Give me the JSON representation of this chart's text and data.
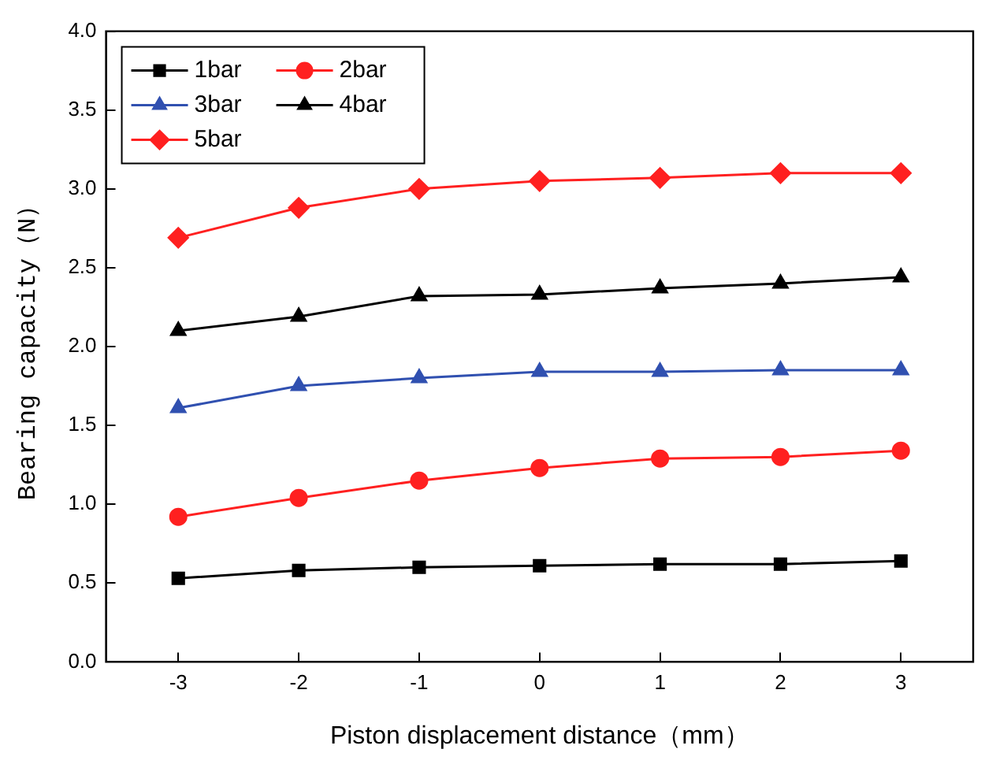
{
  "chart_data": {
    "type": "line",
    "xlabel": "Piston displacement distance（mm）",
    "ylabel": "Bearing capacity（N）",
    "x": [
      -3,
      -2,
      -1,
      0,
      1,
      2,
      3
    ],
    "xlim": [
      -3.6,
      3.6
    ],
    "xticks": [
      -3,
      -2,
      -1,
      0,
      1,
      2,
      3
    ],
    "ylim": [
      0,
      4
    ],
    "yticks": [
      "0.0",
      0.5,
      "1.0",
      1.5,
      "2.0",
      2.5,
      "3.0",
      3.5,
      "4.0"
    ],
    "grid": false,
    "legend": "top left",
    "series": [
      {
        "name": "1bar",
        "color": "#000000",
        "marker": "square",
        "values": [
          0.53,
          0.58,
          0.6,
          0.61,
          0.62,
          0.62,
          0.64
        ]
      },
      {
        "name": "2bar",
        "color": "#ff2020",
        "marker": "circle",
        "values": [
          0.92,
          1.04,
          1.15,
          1.23,
          1.29,
          1.3,
          1.34
        ]
      },
      {
        "name": "3bar",
        "color": "#3050b0",
        "marker": "triangle",
        "values": [
          1.61,
          1.75,
          1.8,
          1.84,
          1.84,
          1.85,
          1.85
        ]
      },
      {
        "name": "4bar",
        "color": "#000000",
        "marker": "triangle",
        "values": [
          2.1,
          2.19,
          2.32,
          2.33,
          2.37,
          2.4,
          2.44
        ]
      },
      {
        "name": "5bar",
        "color": "#ff2020",
        "marker": "diamond",
        "values": [
          2.69,
          2.88,
          3.0,
          3.05,
          3.07,
          3.1,
          3.1
        ]
      }
    ]
  }
}
